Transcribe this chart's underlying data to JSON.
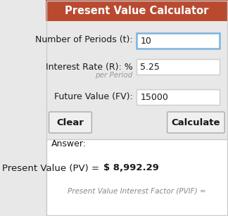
{
  "title": "Present Value Calculator",
  "title_bg": "#b94a30",
  "title_color": "#ffffff",
  "bg_color": "#e8e8e8",
  "label1": "Number of Periods (t):",
  "value1": "10",
  "label2": "Interest Rate (R): %",
  "sublabel2": "per Period",
  "value2": "5.25",
  "label3": "Future Value (FV):",
  "value3": "15000",
  "btn_clear": "Clear",
  "btn_calculate": "Calculate",
  "answer_label": "Answer:",
  "answer_line1_plain": "Present Value (PV) = ",
  "answer_line1_bold": "$ 8,992.29",
  "answer_line2": "Present Value Interest Factor (PVIF) =",
  "answer_bg": "#ffffff",
  "input_bg": "#ffffff",
  "input_border_normal": "#cccccc",
  "input_border_active": "#7ab4e0",
  "font_color": "#1a1a1a",
  "sublabel_color": "#999999"
}
